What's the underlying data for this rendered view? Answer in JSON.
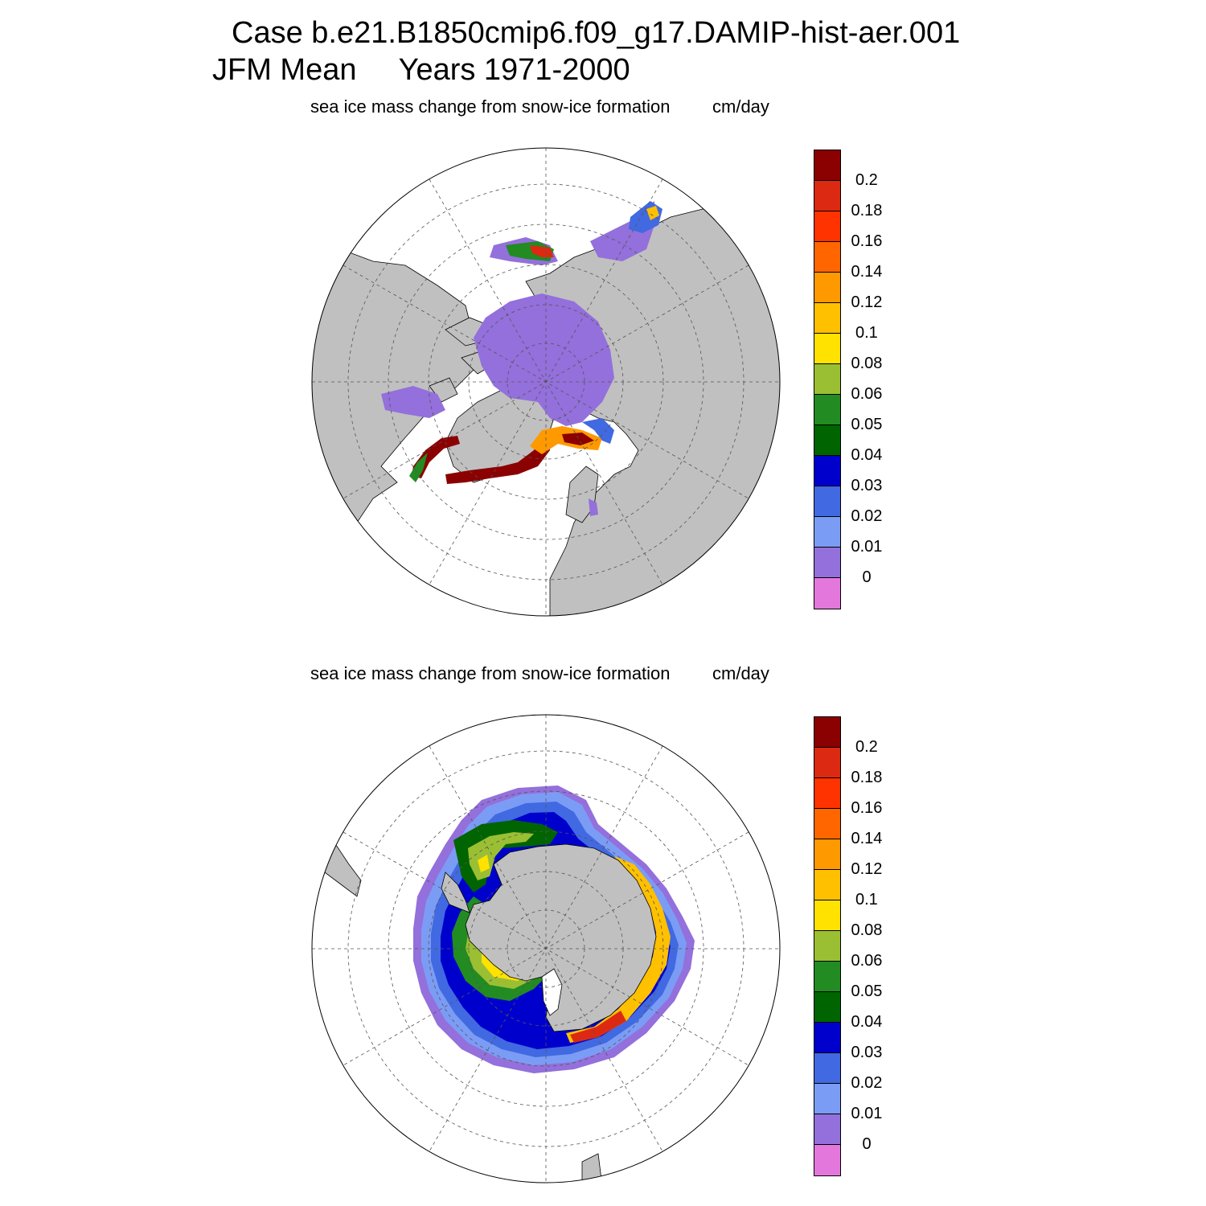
{
  "title": {
    "line1": "Case b.e21.B1850cmip6.f09_g17.DAMIP-hist-aer.001",
    "line2": "JFM Mean     Years 1971-2000"
  },
  "panels": [
    {
      "id": "nh",
      "hemisphere": "north",
      "left_label": "sea ice mass change from snow-ice formation",
      "right_label": "cm/day"
    },
    {
      "id": "sh",
      "hemisphere": "south",
      "left_label": "sea ice mass change from snow-ice formation",
      "right_label": "cm/day"
    }
  ],
  "colorbar": {
    "colors": [
      "#8b0000",
      "#dc2a12",
      "#ff3300",
      "#ff6600",
      "#ff9900",
      "#ffc000",
      "#ffe200",
      "#9bbf33",
      "#228b22",
      "#006400",
      "#0000cd",
      "#4169e1",
      "#7b9cf5",
      "#9370db",
      "#e477dc"
    ],
    "labels": [
      "0.2",
      "0.18",
      "0.16",
      "0.14",
      "0.12",
      "0.1",
      "0.08",
      "0.06",
      "0.05",
      "0.04",
      "0.03",
      "0.02",
      "0.01",
      "0"
    ]
  },
  "colors": {
    "land": "#c0c0c0",
    "ocean": "#ffffff",
    "grid": "#555555"
  }
}
